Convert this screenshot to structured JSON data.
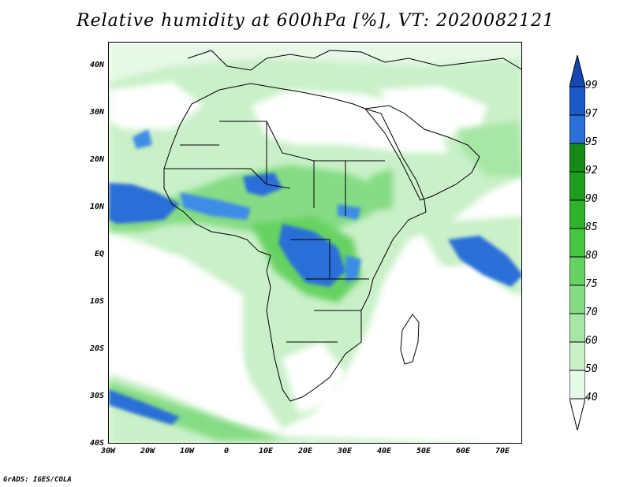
{
  "title": "Relative humidity at 600hPa [%], VT: 2020082121",
  "map": {
    "lat_labels": [
      "40N",
      "30N",
      "20N",
      "10N",
      "EQ",
      "10S",
      "20S",
      "30S",
      "40S"
    ],
    "lon_labels": [
      "30W",
      "20W",
      "10W",
      "0",
      "10E",
      "20E",
      "30E",
      "40E",
      "50E",
      "60E",
      "70E"
    ],
    "extent": {
      "lon_min": -30,
      "lon_max": 75,
      "lat_min": -40,
      "lat_max": 45
    }
  },
  "legend": {
    "ticks": [
      "40",
      "50",
      "60",
      "70",
      "75",
      "80",
      "85",
      "90",
      "92",
      "95",
      "97",
      "99"
    ],
    "colors": [
      "#e6f8e6",
      "#c9f0c8",
      "#a8e6a6",
      "#86dc84",
      "#66d262",
      "#46c542",
      "#2db42b",
      "#1e9e1e",
      "#158a15",
      "#3c8ce6",
      "#2a6ed8",
      "#1b58c8",
      "#1448b4"
    ]
  },
  "footer": "GrADS: IGES/COLA"
}
